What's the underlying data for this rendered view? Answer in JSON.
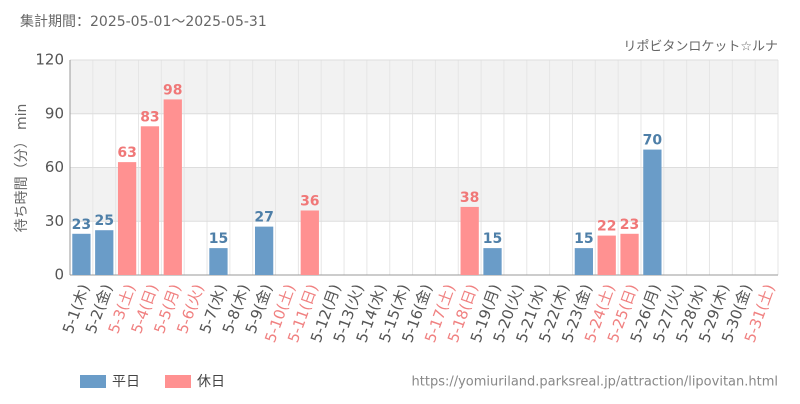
{
  "chart_data": {
    "type": "bar",
    "title": "集計期間：2025-05-01～2025-05-31",
    "subtitle": "リポビタンロケット☆ルナ",
    "y_label": "待ち時間（分） min",
    "source": "https://yomiuriland.parksreal.jp/attraction/lipovitan.html",
    "categories": [
      "5-1(木)",
      "5-2(金)",
      "5-3(土)",
      "5-4(日)",
      "5-5(月)",
      "5-6(火)",
      "5-7(水)",
      "5-8(木)",
      "5-9(金)",
      "5-10(土)",
      "5-11(日)",
      "5-12(月)",
      "5-13(火)",
      "5-14(水)",
      "5-15(木)",
      "5-16(金)",
      "5-17(土)",
      "5-18(日)",
      "5-19(月)",
      "5-20(火)",
      "5-21(水)",
      "5-22(木)",
      "5-23(金)",
      "5-24(土)",
      "5-25(日)",
      "5-26(月)",
      "5-27(火)",
      "5-28(水)",
      "5-29(木)",
      "5-30(金)",
      "5-31(土)"
    ],
    "category_label_colors": [
      "#555",
      "#555",
      "#f08080",
      "#f08080",
      "#f08080",
      "#f08080",
      "#555",
      "#555",
      "#555",
      "#f08080",
      "#f08080",
      "#555",
      "#555",
      "#555",
      "#555",
      "#555",
      "#f08080",
      "#f08080",
      "#555",
      "#555",
      "#555",
      "#555",
      "#555",
      "#f08080",
      "#f08080",
      "#555",
      "#555",
      "#555",
      "#555",
      "#555",
      "#f08080"
    ],
    "series": [
      {
        "name": "平日",
        "color": "#6a9cc8",
        "label_color": "#4e7fa8",
        "values": [
          23,
          25,
          null,
          null,
          null,
          null,
          15,
          null,
          27,
          null,
          null,
          null,
          null,
          null,
          null,
          null,
          null,
          null,
          15,
          null,
          null,
          null,
          15,
          null,
          null,
          70,
          null,
          null,
          null,
          null,
          null
        ]
      },
      {
        "name": "休日",
        "color": "#ff9191",
        "label_color": "#f07878",
        "values": [
          null,
          null,
          63,
          83,
          98,
          null,
          null,
          null,
          null,
          null,
          36,
          null,
          null,
          null,
          null,
          null,
          null,
          38,
          null,
          null,
          null,
          null,
          null,
          22,
          23,
          null,
          null,
          null,
          null,
          null,
          null
        ]
      }
    ],
    "ylim": [
      0,
      120
    ],
    "yticks": [
      0,
      30,
      60,
      90,
      120
    ],
    "grid": true
  }
}
